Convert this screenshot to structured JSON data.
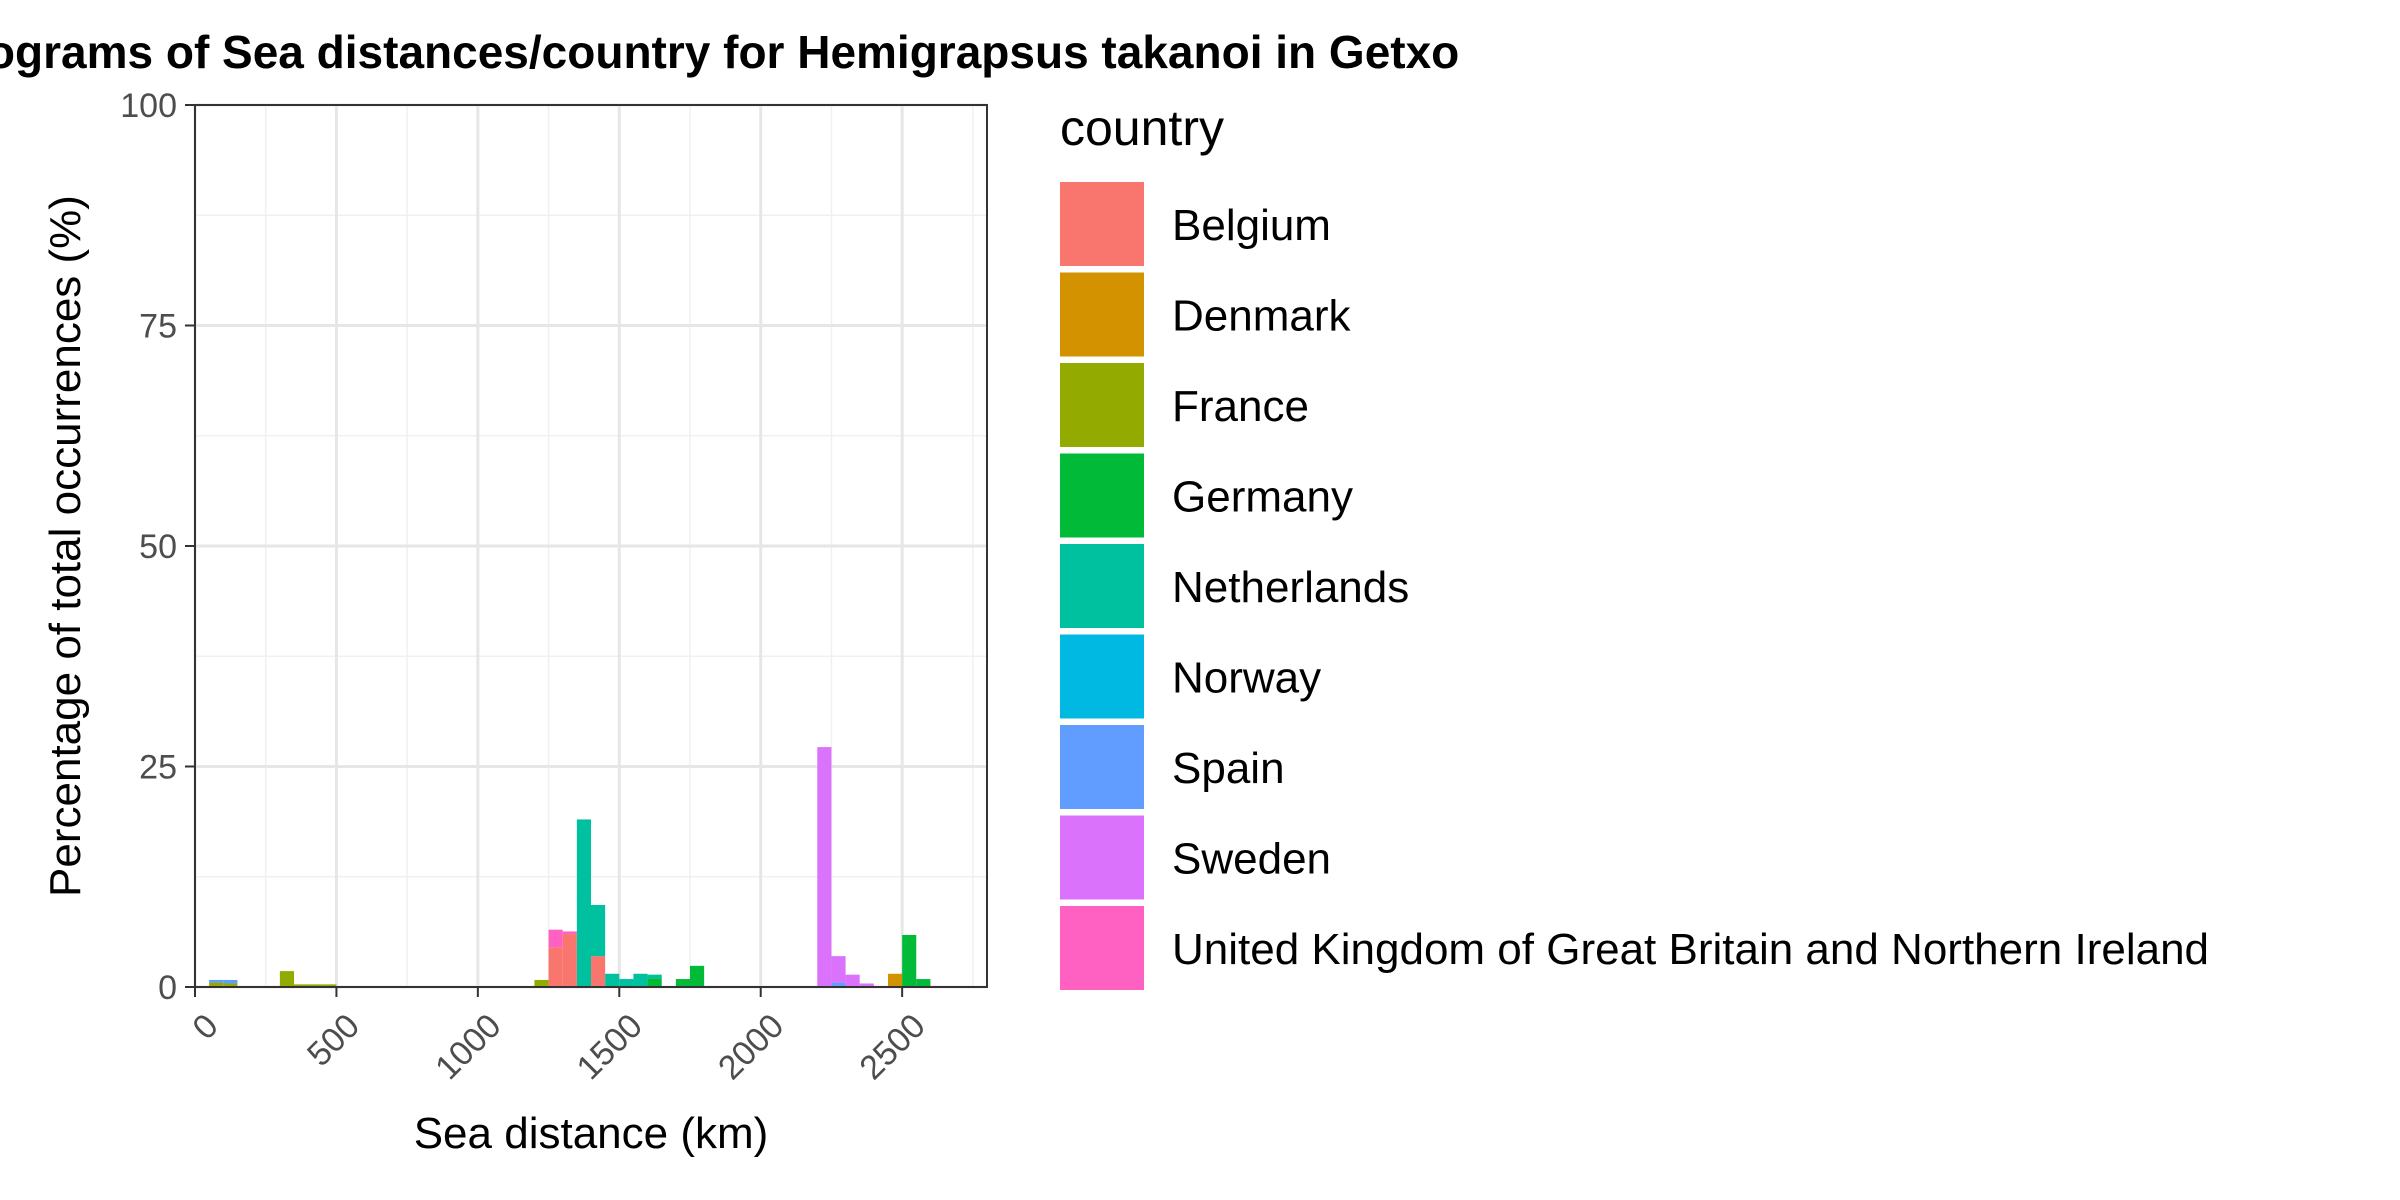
{
  "chart_data": {
    "type": "bar",
    "title": "Histograms of Sea distances/country for Hemigrapsus takanoi in Getxo",
    "xlabel": "Sea distance (km)",
    "ylabel": "Percentage of total occurrences (%)",
    "xlim": [
      0,
      2800
    ],
    "ylim": [
      0,
      100
    ],
    "x_ticks": [
      "0",
      "500",
      "1000",
      "1500",
      "2000",
      "2500"
    ],
    "x_tick_values": [
      0,
      500,
      1000,
      1500,
      2000,
      2500
    ],
    "y_ticks": [
      "0",
      "25",
      "50",
      "75",
      "100"
    ],
    "y_tick_values": [
      0,
      25,
      50,
      75,
      100
    ],
    "bin_width": 50,
    "stacked": true,
    "grid": true,
    "legend_title": "country",
    "legend_position": "right",
    "series": [
      {
        "name": "Belgium",
        "color": "#F8766D",
        "bins": [
          [
            1250,
            4.5
          ],
          [
            1300,
            6.0
          ],
          [
            1400,
            3.5
          ]
        ]
      },
      {
        "name": "Denmark",
        "color": "#D39200",
        "bins": [
          [
            2450,
            1.5
          ]
        ]
      },
      {
        "name": "France",
        "color": "#93AA00",
        "bins": [
          [
            50,
            0.5
          ],
          [
            100,
            0.4
          ],
          [
            300,
            1.8
          ],
          [
            350,
            0.3
          ],
          [
            400,
            0.3
          ],
          [
            450,
            0.3
          ],
          [
            1200,
            0.8
          ]
        ]
      },
      {
        "name": "Germany",
        "color": "#00BA38",
        "bins": [
          [
            1600,
            1.0
          ],
          [
            1700,
            0.9
          ],
          [
            1750,
            2.4
          ],
          [
            2500,
            5.9
          ],
          [
            2550,
            0.9
          ]
        ]
      },
      {
        "name": "Netherlands",
        "color": "#00C19F",
        "bins": [
          [
            1350,
            19.0
          ],
          [
            1400,
            5.8
          ],
          [
            1450,
            1.5
          ],
          [
            1500,
            0.9
          ],
          [
            1550,
            1.5
          ],
          [
            1600,
            0.4
          ]
        ]
      },
      {
        "name": "Norway",
        "color": "#00B9E3",
        "bins": []
      },
      {
        "name": "Spain",
        "color": "#619CFF",
        "bins": [
          [
            50,
            0.3
          ],
          [
            100,
            0.4
          ],
          [
            2250,
            0.5
          ]
        ]
      },
      {
        "name": "Sweden",
        "color": "#DB72FB",
        "bins": [
          [
            2200,
            27.2
          ],
          [
            2250,
            3.0
          ],
          [
            2300,
            1.4
          ],
          [
            2350,
            0.4
          ]
        ]
      },
      {
        "name": "United Kingdom of Great Britain and Northern Ireland",
        "color": "#FF61C3",
        "bins": [
          [
            1250,
            2.0
          ],
          [
            1300,
            0.3
          ]
        ]
      }
    ]
  }
}
